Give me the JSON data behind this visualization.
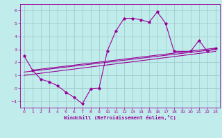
{
  "xlabel": "Windchill (Refroidissement éolien,°C)",
  "bg_color": "#c0ecec",
  "grid_color": "#a0cccc",
  "line_color": "#990099",
  "xlim": [
    -0.5,
    23.5
  ],
  "ylim": [
    -1.5,
    6.5
  ],
  "yticks": [
    -1,
    0,
    1,
    2,
    3,
    4,
    5,
    6
  ],
  "xticks": [
    0,
    1,
    2,
    3,
    4,
    5,
    6,
    7,
    8,
    9,
    10,
    11,
    12,
    13,
    14,
    15,
    16,
    17,
    18,
    19,
    20,
    21,
    22,
    23
  ],
  "line1_x": [
    0,
    1,
    2,
    3,
    4,
    5,
    6,
    7,
    8,
    9,
    10,
    11,
    12,
    13,
    14,
    15,
    16,
    17,
    18,
    20,
    21,
    22,
    23
  ],
  "line1_y": [
    2.5,
    1.4,
    0.7,
    0.5,
    0.2,
    -0.3,
    -0.7,
    -1.2,
    -0.05,
    0.0,
    2.9,
    4.4,
    5.4,
    5.4,
    5.3,
    5.1,
    5.9,
    5.0,
    2.85,
    2.85,
    3.7,
    2.85,
    3.1
  ],
  "line2_x": [
    1,
    23
  ],
  "line2_y": [
    1.4,
    3.1
  ],
  "line3_x": [
    0,
    23
  ],
  "line3_y": [
    1.0,
    2.85
  ],
  "line4_x": [
    0,
    23
  ],
  "line4_y": [
    1.25,
    3.0
  ]
}
